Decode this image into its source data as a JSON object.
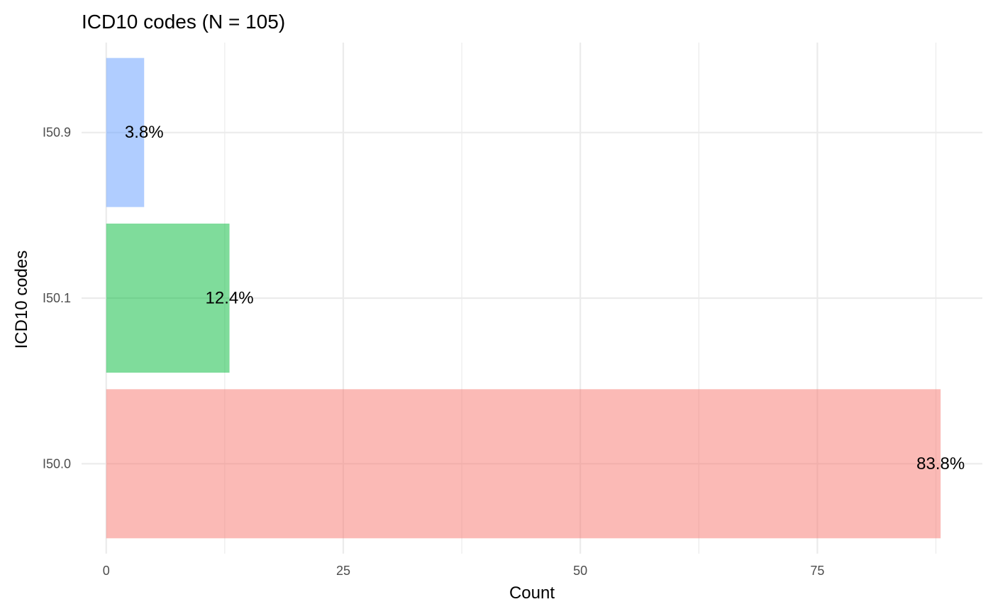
{
  "chart_data": {
    "type": "bar",
    "orientation": "horizontal",
    "title": "ICD10 codes (N = 105)",
    "xlabel": "Count",
    "ylabel": "ICD10 codes",
    "categories": [
      "I50.0",
      "I50.1",
      "I50.9"
    ],
    "values": [
      88,
      13,
      4
    ],
    "labels": [
      "83.8%",
      "12.4%",
      "3.8%"
    ],
    "colors": [
      "#F8766D",
      "#00BA38",
      "#619CFF"
    ],
    "bar_opacity": 0.5,
    "xlim": [
      0,
      92
    ],
    "xticks": [
      0,
      25,
      50,
      75
    ],
    "grid": true,
    "legend": "none"
  }
}
